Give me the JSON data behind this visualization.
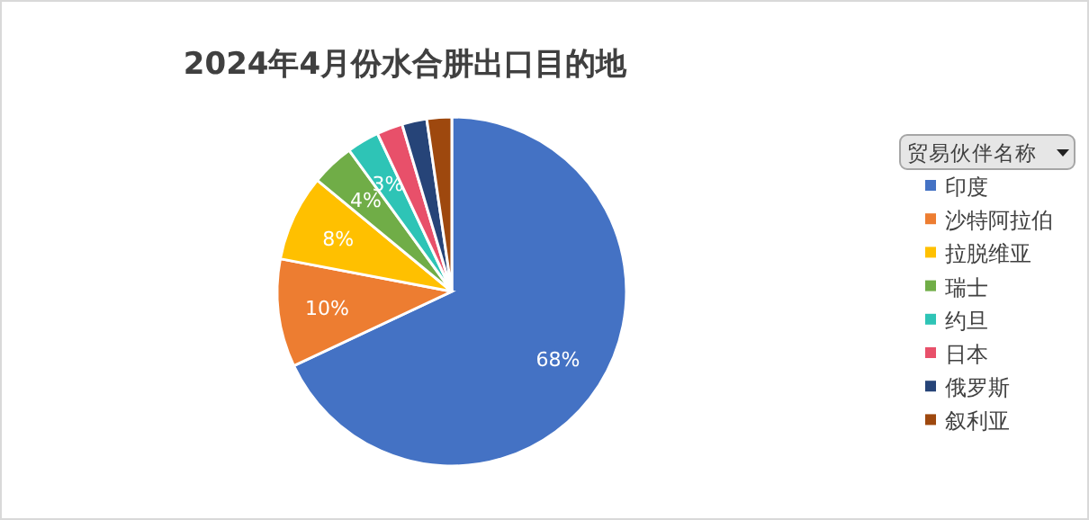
{
  "chart_data": {
    "type": "pie",
    "title": "2024年4月份水合肼出口目的地",
    "legend_title": "贸易伙伴名称",
    "legend": "right",
    "categories": [
      "印度",
      "沙特阿拉伯",
      "拉脱维亚",
      "瑞士",
      "约旦",
      "日本",
      "俄罗斯",
      "叙利亚"
    ],
    "values": [
      68,
      10,
      8,
      4,
      3,
      2.4,
      2.3,
      2.3
    ],
    "colors": [
      "#4472c4",
      "#ed7d31",
      "#ffc000",
      "#70ad47",
      "#2ec4b6",
      "#e8506a",
      "#264478",
      "#9e480e"
    ],
    "value_labels": [
      "68%",
      "10%",
      "8%",
      "4%",
      "3%",
      null,
      null,
      null
    ]
  }
}
